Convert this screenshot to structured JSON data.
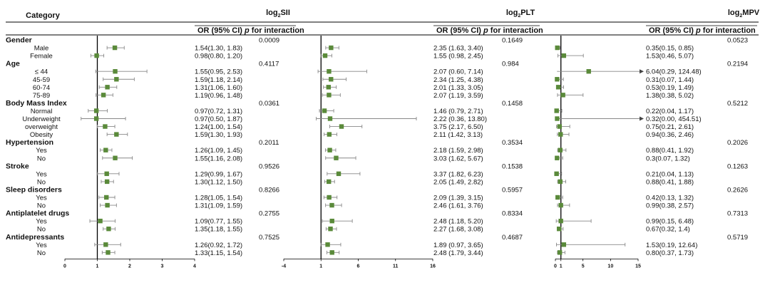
{
  "header": {
    "category": "Category",
    "panel_titles": [
      "log2SII",
      "log2PLT",
      "log2MPV"
    ],
    "or_label": "OR (95% CI)",
    "p_label": "p",
    "interaction_label": "for interaction"
  },
  "colors": {
    "marker": "#5a8a3a",
    "ci_line": "#888888",
    "ref_line": "#000000",
    "text": "#111111"
  },
  "rows": [
    {
      "type": "cat",
      "label": "Gender",
      "p": [
        "0.0009",
        "0.1649",
        "0.0523"
      ]
    },
    {
      "type": "sub",
      "label": "Male",
      "ci": [
        "1.54(1.30, 1.83)",
        "2.35 (1.63, 3.40)",
        "0.35(0.15, 0.85)"
      ]
    },
    {
      "type": "sub",
      "label": "Female",
      "ci": [
        "0.98(0.80, 1.20)",
        "1.55 (0.98, 2.45)",
        "1.53(0.46, 5.07)"
      ]
    },
    {
      "type": "cat",
      "label": "Age",
      "p": [
        "0.4117",
        "0.984",
        "0.2194"
      ]
    },
    {
      "type": "sub",
      "label": "≤ 44",
      "ci": [
        "1.55(0.95, 2.53)",
        "2.07 (0.60, 7.14)",
        "6.04(0.29, 124.48)"
      ]
    },
    {
      "type": "sub",
      "label": "45-59",
      "ci": [
        "1.59(1.18, 2.14)",
        "2.34 (1.25, 4.38)",
        "0.31(0.07, 1.44)"
      ]
    },
    {
      "type": "sub",
      "label": "60-74",
      "ci": [
        "1.31(1.06, 1.60)",
        "2.01 (1.33, 3.05)",
        "0.53(0.19, 1.49)"
      ]
    },
    {
      "type": "sub",
      "label": "75-89",
      "ci": [
        "1.19(0.96, 1.48)",
        "2.07 (1.19, 3.59)",
        "1.38(0.38, 5.02)"
      ]
    },
    {
      "type": "cat",
      "label": "Body Mass Index",
      "p": [
        "0.0361",
        "0.1458",
        "0.5212"
      ]
    },
    {
      "type": "sub",
      "label": "Normal",
      "ci": [
        "0.97(0.72, 1.31)",
        "1.46 (0.79, 2.71)",
        "0.22(0.04, 1.17)"
      ]
    },
    {
      "type": "sub",
      "label": "Underweight",
      "ci": [
        "0.97(0.50, 1.87)",
        "2.22 (0.36, 13.80)",
        "0.32(0.00, 454.51)"
      ]
    },
    {
      "type": "sub",
      "label": "overweight",
      "ci": [
        "1.24(1.00, 1.54)",
        "3.75 (2.17, 6.50)",
        "0.75(0.21, 2.61)"
      ]
    },
    {
      "type": "sub",
      "label": "Obesity",
      "ci": [
        "1.59(1.30, 1.93)",
        "2.11 (1.42, 3.13)",
        "0.94(0.36, 2.46)"
      ]
    },
    {
      "type": "cat",
      "label": "Hypertension",
      "p": [
        "0.2011",
        "0.3534",
        "0.2026"
      ]
    },
    {
      "type": "sub",
      "label": "Yes",
      "ci": [
        "1.26(1.09, 1.45)",
        "2.18 (1.59, 2.98)",
        "0.88(0.41, 1.92)"
      ]
    },
    {
      "type": "sub",
      "label": "No",
      "ci": [
        "1.55(1.16, 2.08)",
        "3.03 (1.62, 5.67)",
        "0.3(0.07, 1.32)"
      ]
    },
    {
      "type": "cat",
      "label": "Stroke",
      "p": [
        "0.9526",
        "0.1538",
        "0.1263"
      ]
    },
    {
      "type": "sub",
      "label": "Yes",
      "ci": [
        "1.29(0.99, 1.67)",
        "3.37 (1.82, 6.23)",
        "0.21(0.04, 1.13)"
      ]
    },
    {
      "type": "sub",
      "label": "No",
      "ci": [
        "1.30(1.12, 1.50)",
        "2.05 (1.49, 2.82)",
        "0.88(0.41, 1.88)"
      ]
    },
    {
      "type": "cat",
      "label": "Sleep disorders",
      "p": [
        "0.8266",
        "0.5957",
        "0.2626"
      ]
    },
    {
      "type": "sub",
      "label": "Yes",
      "ci": [
        "1.28(1.05, 1.54)",
        "2.09 (1.39, 3.15)",
        "0.42(0.13, 1.32)"
      ]
    },
    {
      "type": "sub",
      "label": "No",
      "ci": [
        "1.31(1.09, 1.59)",
        "2.46 (1.61, 3.76)",
        "0.99(0.38, 2.57)"
      ]
    },
    {
      "type": "cat",
      "label": "Antiplatelet drugs",
      "p": [
        "0.2755",
        "0.8334",
        "0.7313"
      ]
    },
    {
      "type": "sub",
      "label": "Yes",
      "ci": [
        "1.09(0.77, 1.55)",
        "2.48 (1.18, 5.20)",
        "0.99(0.15, 6.48)"
      ]
    },
    {
      "type": "sub",
      "label": "No",
      "ci": [
        "1.35(1.18, 1.55)",
        "2.27 (1.68, 3.08)",
        "0.67(0.32, 1.4)"
      ]
    },
    {
      "type": "cat",
      "label": "Antidepressants",
      "p": [
        "0.7525",
        "0.4687",
        "0.5719"
      ]
    },
    {
      "type": "sub",
      "label": "Yes",
      "ci": [
        "1.26(0.92, 1.72)",
        "1.89 (0.97, 3.65)",
        "1.53(0.19, 12.64)"
      ]
    },
    {
      "type": "sub",
      "label": "No",
      "ci": [
        "1.33(1.15, 1.54)",
        "2.48 (1.79, 3.44)",
        "0.80(0.37, 1.73)"
      ]
    }
  ],
  "chart_data": [
    {
      "type": "forest",
      "title": "log2SII",
      "xlim": [
        0,
        4
      ],
      "ticks": [
        "0",
        "1",
        "2",
        "3",
        "4"
      ],
      "ref": 1,
      "series": [
        {
          "label": "Male",
          "or": 1.54,
          "lo": 1.3,
          "hi": 1.83
        },
        {
          "label": "Female",
          "or": 0.98,
          "lo": 0.8,
          "hi": 1.2
        },
        {
          "label": "≤ 44",
          "or": 1.55,
          "lo": 0.95,
          "hi": 2.53
        },
        {
          "label": "45-59",
          "or": 1.59,
          "lo": 1.18,
          "hi": 2.14
        },
        {
          "label": "60-74",
          "or": 1.31,
          "lo": 1.06,
          "hi": 1.6
        },
        {
          "label": "75-89",
          "or": 1.19,
          "lo": 0.96,
          "hi": 1.48
        },
        {
          "label": "Normal",
          "or": 0.97,
          "lo": 0.72,
          "hi": 1.31
        },
        {
          "label": "Underweight",
          "or": 0.97,
          "lo": 0.5,
          "hi": 1.87
        },
        {
          "label": "overweight",
          "or": 1.24,
          "lo": 1.0,
          "hi": 1.54
        },
        {
          "label": "Obesity",
          "or": 1.59,
          "lo": 1.3,
          "hi": 1.93
        },
        {
          "label": "Hypertension Yes",
          "or": 1.26,
          "lo": 1.09,
          "hi": 1.45
        },
        {
          "label": "Hypertension No",
          "or": 1.55,
          "lo": 1.16,
          "hi": 2.08
        },
        {
          "label": "Stroke Yes",
          "or": 1.29,
          "lo": 0.99,
          "hi": 1.67
        },
        {
          "label": "Stroke No",
          "or": 1.3,
          "lo": 1.12,
          "hi": 1.5
        },
        {
          "label": "Sleep disorders Yes",
          "or": 1.28,
          "lo": 1.05,
          "hi": 1.54
        },
        {
          "label": "Sleep disorders No",
          "or": 1.31,
          "lo": 1.09,
          "hi": 1.59
        },
        {
          "label": "Antiplatelet drugs Yes",
          "or": 1.09,
          "lo": 0.77,
          "hi": 1.55
        },
        {
          "label": "Antiplatelet drugs No",
          "or": 1.35,
          "lo": 1.18,
          "hi": 1.55
        },
        {
          "label": "Antidepressants Yes",
          "or": 1.26,
          "lo": 0.92,
          "hi": 1.72
        },
        {
          "label": "Antidepressants No",
          "or": 1.33,
          "lo": 1.15,
          "hi": 1.54
        }
      ]
    },
    {
      "type": "forest",
      "title": "log2PLT",
      "xlim": [
        -4,
        16
      ],
      "ticks": [
        "-4",
        "1",
        "6",
        "11",
        "16"
      ],
      "ref": 1,
      "series": [
        {
          "label": "Male",
          "or": 2.35,
          "lo": 1.63,
          "hi": 3.4
        },
        {
          "label": "Female",
          "or": 1.55,
          "lo": 0.98,
          "hi": 2.45
        },
        {
          "label": "≤ 44",
          "or": 2.07,
          "lo": 0.6,
          "hi": 7.14
        },
        {
          "label": "45-59",
          "or": 2.34,
          "lo": 1.25,
          "hi": 4.38
        },
        {
          "label": "60-74",
          "or": 2.01,
          "lo": 1.33,
          "hi": 3.05
        },
        {
          "label": "75-89",
          "or": 2.07,
          "lo": 1.19,
          "hi": 3.59
        },
        {
          "label": "Normal",
          "or": 1.46,
          "lo": 0.79,
          "hi": 2.71
        },
        {
          "label": "Underweight",
          "or": 2.22,
          "lo": 0.36,
          "hi": 13.8
        },
        {
          "label": "overweight",
          "or": 3.75,
          "lo": 2.17,
          "hi": 6.5
        },
        {
          "label": "Obesity",
          "or": 2.11,
          "lo": 1.42,
          "hi": 3.13
        },
        {
          "label": "Hypertension Yes",
          "or": 2.18,
          "lo": 1.59,
          "hi": 2.98
        },
        {
          "label": "Hypertension No",
          "or": 3.03,
          "lo": 1.62,
          "hi": 5.67
        },
        {
          "label": "Stroke Yes",
          "or": 3.37,
          "lo": 1.82,
          "hi": 6.23
        },
        {
          "label": "Stroke No",
          "or": 2.05,
          "lo": 1.49,
          "hi": 2.82
        },
        {
          "label": "Sleep disorders Yes",
          "or": 2.09,
          "lo": 1.39,
          "hi": 3.15
        },
        {
          "label": "Sleep disorders No",
          "or": 2.46,
          "lo": 1.61,
          "hi": 3.76
        },
        {
          "label": "Antiplatelet drugs Yes",
          "or": 2.48,
          "lo": 1.18,
          "hi": 5.2
        },
        {
          "label": "Antiplatelet drugs No",
          "or": 2.27,
          "lo": 1.68,
          "hi": 3.08
        },
        {
          "label": "Antidepressants Yes",
          "or": 1.89,
          "lo": 0.97,
          "hi": 3.65
        },
        {
          "label": "Antidepressants No",
          "or": 2.48,
          "lo": 1.79,
          "hi": 3.44
        }
      ]
    },
    {
      "type": "forest",
      "title": "log2MPV",
      "xlim": [
        0,
        15
      ],
      "ticks": [
        "0",
        "1",
        "5",
        "10",
        "15"
      ],
      "ref": 1,
      "series": [
        {
          "label": "Male",
          "or": 0.35,
          "lo": 0.15,
          "hi": 0.85
        },
        {
          "label": "Female",
          "or": 1.53,
          "lo": 0.46,
          "hi": 5.07
        },
        {
          "label": "≤ 44",
          "or": 6.04,
          "lo": 0.29,
          "hi": 124.48,
          "arrow": true
        },
        {
          "label": "45-59",
          "or": 0.31,
          "lo": 0.07,
          "hi": 1.44
        },
        {
          "label": "60-74",
          "or": 0.53,
          "lo": 0.19,
          "hi": 1.49
        },
        {
          "label": "75-89",
          "or": 1.38,
          "lo": 0.38,
          "hi": 5.02
        },
        {
          "label": "Normal",
          "or": 0.22,
          "lo": 0.04,
          "hi": 1.17
        },
        {
          "label": "Underweight",
          "or": 0.32,
          "lo": 0.0,
          "hi": 454.51,
          "arrow": true
        },
        {
          "label": "overweight",
          "or": 0.75,
          "lo": 0.21,
          "hi": 2.61
        },
        {
          "label": "Obesity",
          "or": 0.94,
          "lo": 0.36,
          "hi": 2.46
        },
        {
          "label": "Hypertension Yes",
          "or": 0.88,
          "lo": 0.41,
          "hi": 1.92
        },
        {
          "label": "Hypertension No",
          "or": 0.3,
          "lo": 0.07,
          "hi": 1.32
        },
        {
          "label": "Stroke Yes",
          "or": 0.21,
          "lo": 0.04,
          "hi": 1.13
        },
        {
          "label": "Stroke No",
          "or": 0.88,
          "lo": 0.41,
          "hi": 1.88
        },
        {
          "label": "Sleep disorders Yes",
          "or": 0.42,
          "lo": 0.13,
          "hi": 1.32
        },
        {
          "label": "Sleep disorders No",
          "or": 0.99,
          "lo": 0.38,
          "hi": 2.57
        },
        {
          "label": "Antiplatelet drugs Yes",
          "or": 0.99,
          "lo": 0.15,
          "hi": 6.48
        },
        {
          "label": "Antiplatelet drugs No",
          "or": 0.67,
          "lo": 0.32,
          "hi": 1.4
        },
        {
          "label": "Antidepressants Yes",
          "or": 1.53,
          "lo": 0.19,
          "hi": 12.64
        },
        {
          "label": "Antidepressants No",
          "or": 0.8,
          "lo": 0.37,
          "hi": 1.73
        }
      ]
    }
  ]
}
